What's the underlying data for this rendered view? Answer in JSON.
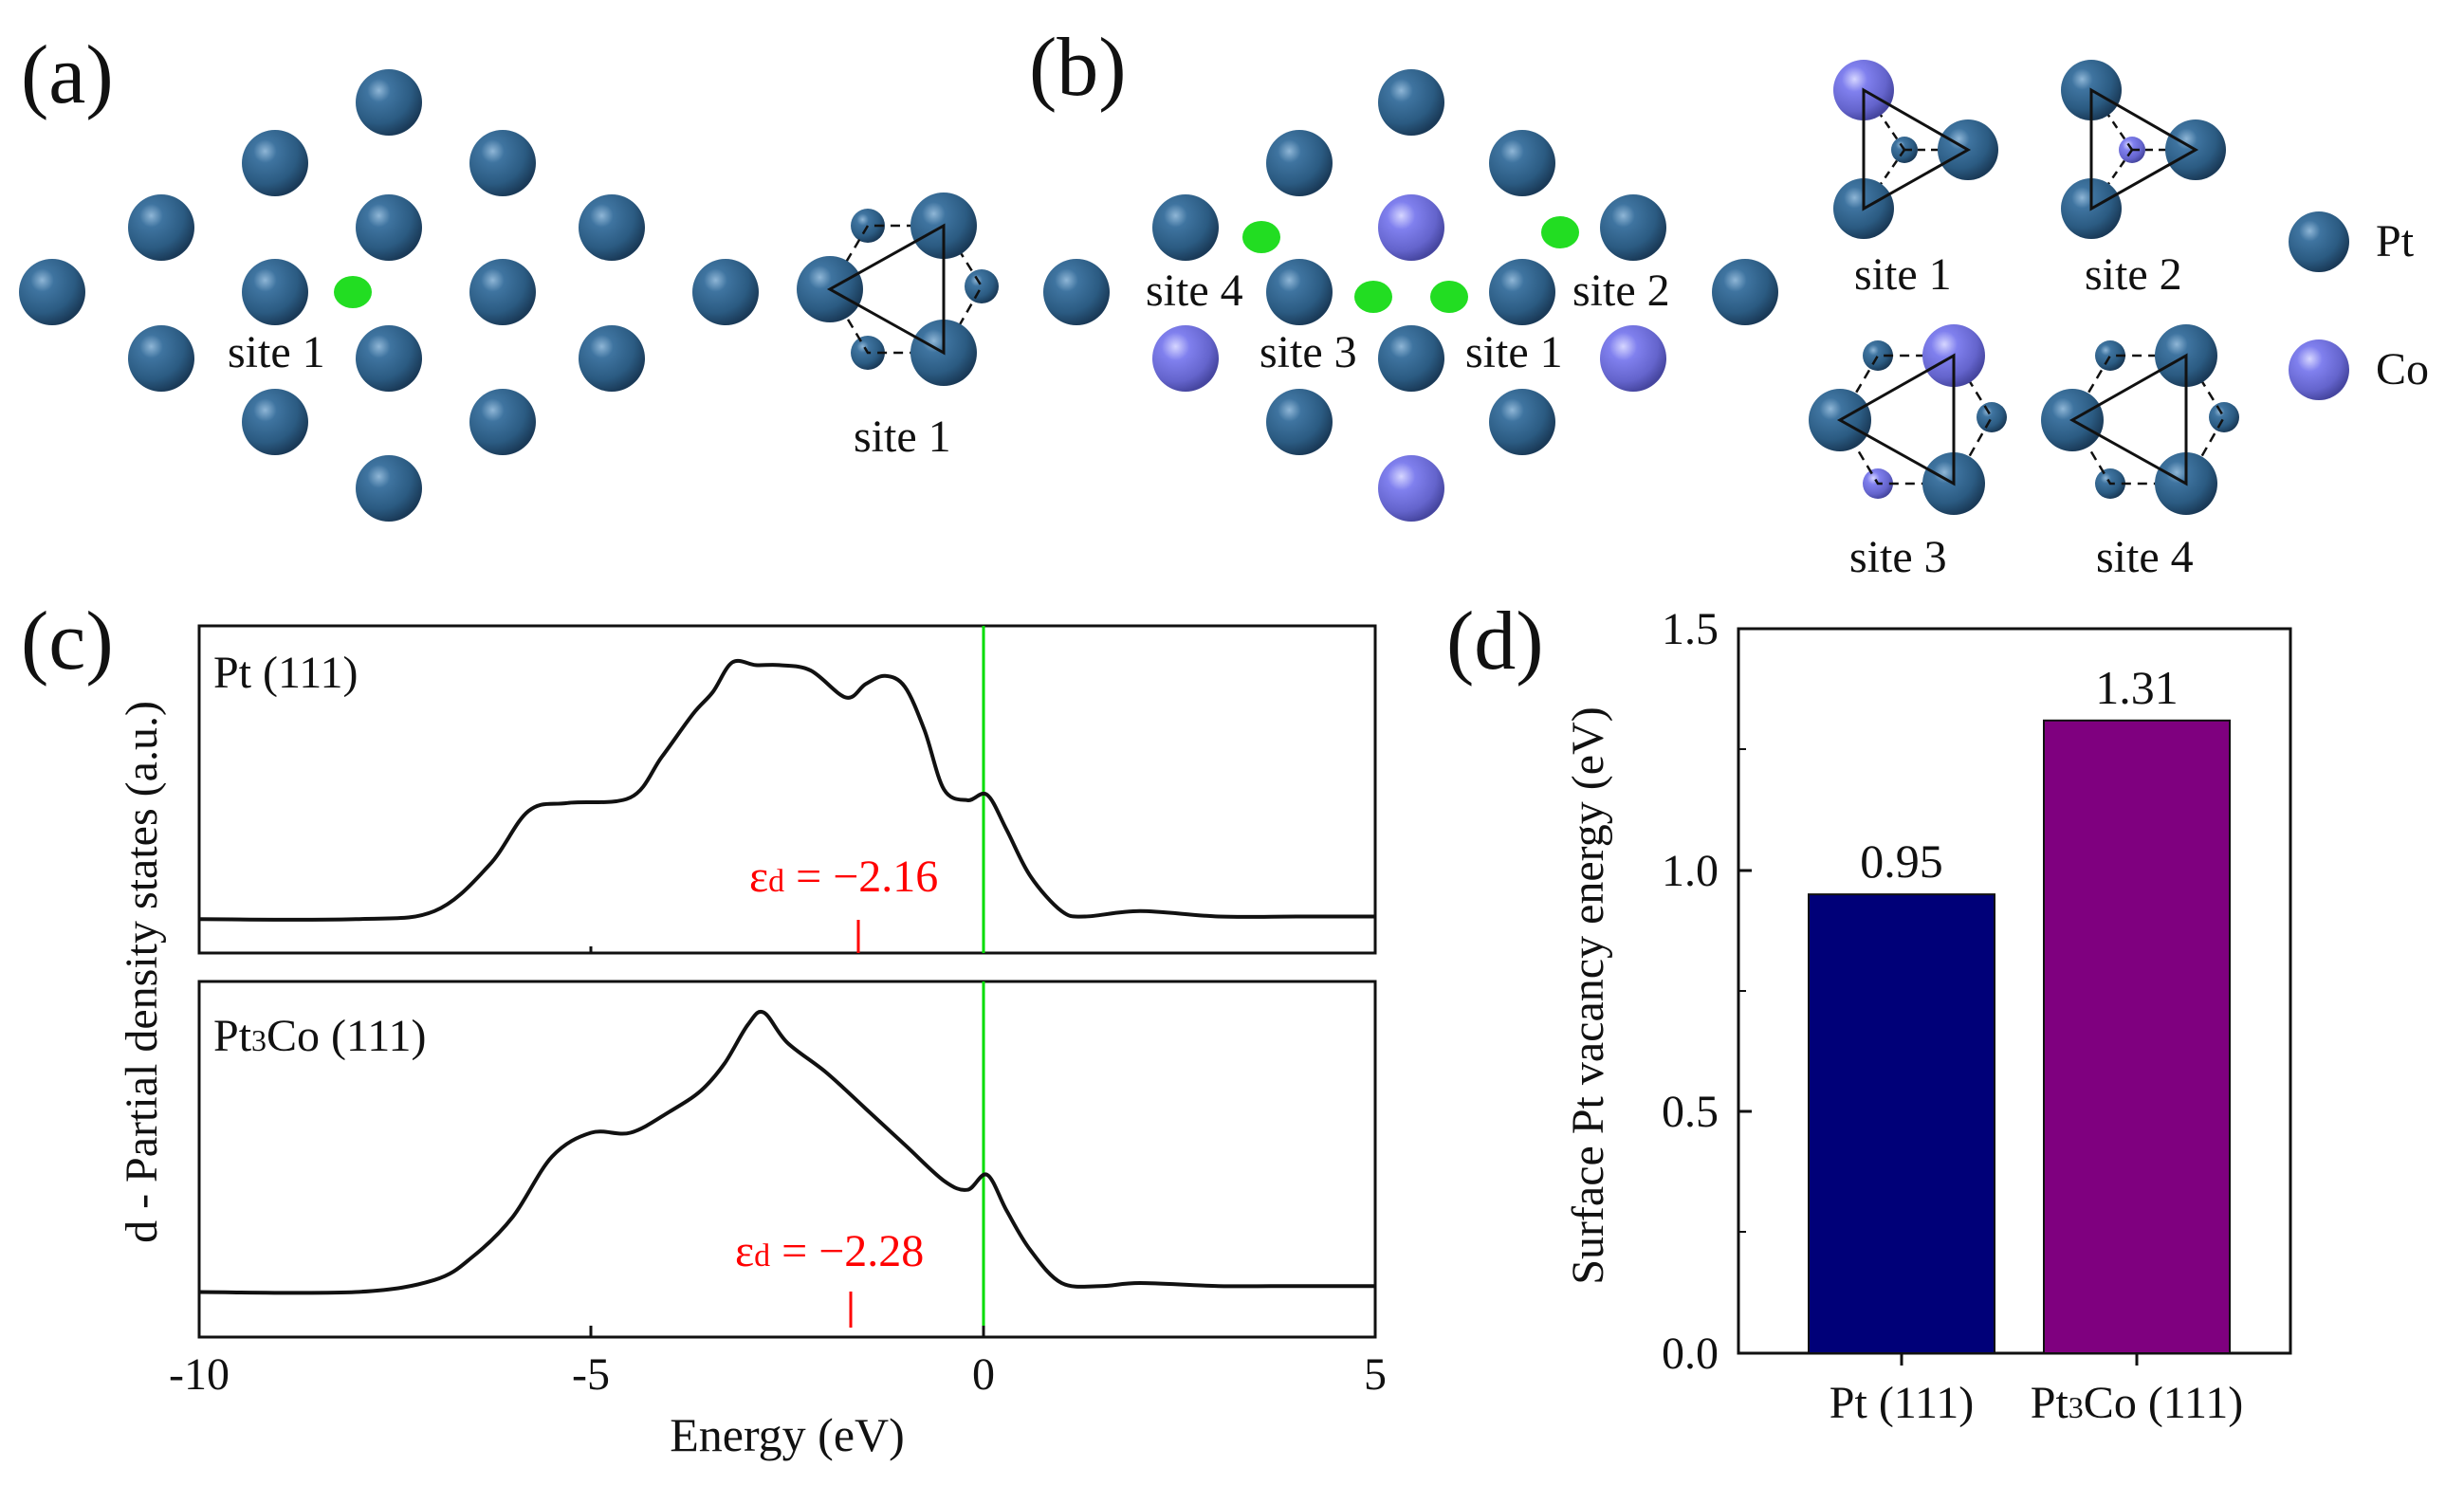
{
  "panels": {
    "a": {
      "label": "(a)",
      "site_top": "site 1",
      "site_detail": "site 1"
    },
    "b": {
      "label": "(b)",
      "sites": [
        "site 4",
        "site 3",
        "site 1",
        "site 2"
      ],
      "detail_sites": [
        "site 1",
        "site 2",
        "site 3",
        "site 4"
      ],
      "legend": [
        {
          "name": "Pt",
          "color": "#2e5f86"
        },
        {
          "name": "Co",
          "color": "#7a7ae6"
        }
      ]
    },
    "c": {
      "label": "(c)",
      "top_title": "Pt (111)",
      "bottom_title_main": "Pt",
      "bottom_title_sub": "3",
      "bottom_title_rest": "Co (111)",
      "eps_symbol": "ε",
      "eps_sub": "d",
      "top_eps_value": " = −2.16",
      "bottom_eps_value": " = −2.28",
      "xlabel": "Energy (eV)",
      "ylabel": "d - Partial density states (a.u.)",
      "xticks": [
        "-10",
        "-5",
        "0",
        "5"
      ],
      "fermi_color": "#00dd00",
      "marker_color": "#ff0000"
    },
    "d": {
      "label": "(d)",
      "ylabel": "Surface Pt vacancy energy (eV)",
      "cat1": "Pt (111)",
      "cat2_main": "Pt",
      "cat2_sub": "3",
      "cat2_rest": "Co (111)",
      "value_labels": [
        "0.95",
        "1.31"
      ],
      "yticks": [
        "0.0",
        "0.5",
        "1.0",
        "1.5"
      ]
    }
  },
  "chart_data": [
    {
      "type": "line",
      "title": "Pt (111)",
      "xlabel": "Energy (eV)",
      "ylabel": "d - Partial density states (a.u.)",
      "xlim": [
        -10,
        5
      ],
      "fermi_level": 0,
      "d_band_center": -2.16,
      "x": [
        -10,
        -8,
        -7,
        -6.3,
        -5.8,
        -5.3,
        -4.5,
        -4.1,
        -3.7,
        -3.45,
        -3.2,
        -2.9,
        -2.6,
        -2.2,
        -1.75,
        -1.5,
        -1.25,
        -1.0,
        -0.75,
        -0.5,
        -0.2,
        0.05,
        0.3,
        0.6,
        1.0,
        1.3,
        2.0,
        3.0,
        4.0,
        5.0
      ],
      "y": [
        0.02,
        0.02,
        0.05,
        0.22,
        0.42,
        0.45,
        0.47,
        0.62,
        0.78,
        0.86,
        0.97,
        0.96,
        0.96,
        0.94,
        0.84,
        0.89,
        0.92,
        0.88,
        0.72,
        0.5,
        0.46,
        0.48,
        0.35,
        0.18,
        0.05,
        0.03,
        0.05,
        0.03,
        0.03,
        0.03
      ]
    },
    {
      "type": "line",
      "title": "Pt3Co (111)",
      "xlabel": "Energy (eV)",
      "ylabel": "d - Partial density states (a.u.)",
      "xlim": [
        -10,
        5
      ],
      "fermi_level": 0,
      "d_band_center": -2.28,
      "x": [
        -10,
        -8,
        -7,
        -6.5,
        -6,
        -5.5,
        -5,
        -4.5,
        -4,
        -3.6,
        -3.3,
        -3.0,
        -2.8,
        -2.5,
        -2.0,
        -1.5,
        -1.0,
        -0.5,
        -0.2,
        0.05,
        0.3,
        0.6,
        1.0,
        1.5,
        2.0,
        3.0,
        4.0,
        5.0
      ],
      "y": [
        0.03,
        0.03,
        0.07,
        0.15,
        0.28,
        0.48,
        0.56,
        0.56,
        0.63,
        0.7,
        0.79,
        0.92,
        0.96,
        0.86,
        0.76,
        0.64,
        0.52,
        0.4,
        0.37,
        0.42,
        0.3,
        0.17,
        0.06,
        0.05,
        0.06,
        0.05,
        0.05,
        0.05
      ]
    },
    {
      "type": "bar",
      "categories": [
        "Pt (111)",
        "Pt3Co (111)"
      ],
      "values": [
        0.95,
        1.31
      ],
      "colors": [
        "#000078",
        "#7f007f"
      ],
      "ylabel": "Surface Pt vacancy energy (eV)",
      "ylim": [
        0,
        1.5
      ]
    }
  ]
}
